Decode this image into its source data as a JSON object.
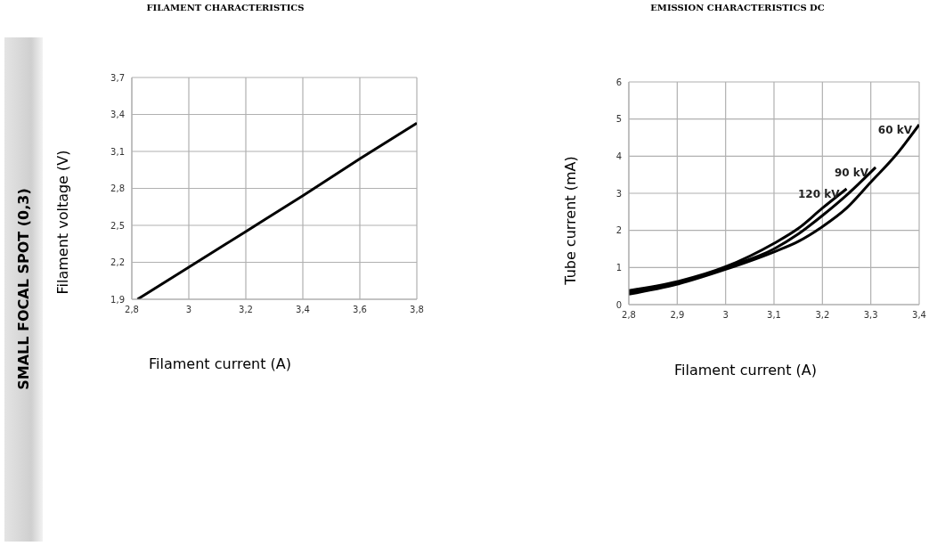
{
  "chart_data": [
    {
      "type": "line",
      "title": "FILAMENT CHARACTERISTICS",
      "xlabel": "Filament current (A)",
      "ylabel": "Filament voltage (V)",
      "annotations": [
        "SMALL FOCAL SPOT (0,3)"
      ],
      "series": [
        {
          "color": "#000000",
          "x": [
            2.82,
            3.0,
            3.2,
            3.4,
            3.6,
            3.8
          ],
          "values": [
            1.9,
            2.16,
            2.45,
            2.74,
            3.04,
            3.33
          ]
        }
      ],
      "xlim": [
        2.8,
        3.8
      ],
      "xticks": [
        {
          "value": 2.8,
          "label": "2,8"
        },
        {
          "value": 3,
          "label": "3"
        },
        {
          "value": 3.2,
          "label": "3,2"
        },
        {
          "value": 3.4,
          "label": "3,4"
        },
        {
          "value": 3.6,
          "label": "3,6"
        },
        {
          "value": 3.8,
          "label": "3,8"
        }
      ],
      "ylim": [
        1.9,
        3.7
      ],
      "yticks": [
        {
          "value": 1.9,
          "label": "1,9"
        },
        {
          "value": 2.2,
          "label": "2,2"
        },
        {
          "value": 2.5,
          "label": "2,5"
        },
        {
          "value": 2.8,
          "label": "2,8"
        },
        {
          "value": 3.1,
          "label": "3,1"
        },
        {
          "value": 3.4,
          "label": "3,4"
        },
        {
          "value": 3.7,
          "label": "3,7"
        }
      ],
      "grid": true,
      "legend": false,
      "marker": "none",
      "line_style": "solid"
    },
    {
      "type": "line",
      "title": "EMISSION CHARACTERISTICS DC",
      "xlabel": "Filament current (A)",
      "ylabel": "Tube current (mA)",
      "series": [
        {
          "name": "120 kV",
          "color": "#000000",
          "x": [
            2.8,
            2.9,
            3.0,
            3.1,
            3.15,
            3.2,
            3.25
          ],
          "values": [
            0.38,
            0.62,
            1.02,
            1.65,
            2.05,
            2.6,
            3.12
          ]
        },
        {
          "name": "90 kV",
          "color": "#000000",
          "x": [
            2.8,
            2.9,
            3.0,
            3.1,
            3.15,
            3.2,
            3.25,
            3.31
          ],
          "values": [
            0.33,
            0.58,
            1.0,
            1.5,
            1.9,
            2.4,
            2.95,
            3.7
          ]
        },
        {
          "name": "60 kV",
          "color": "#000000",
          "x": [
            2.8,
            2.9,
            3.0,
            3.1,
            3.15,
            3.2,
            3.25,
            3.3,
            3.35,
            3.4
          ],
          "values": [
            0.28,
            0.55,
            0.95,
            1.42,
            1.7,
            2.1,
            2.6,
            3.3,
            4.0,
            4.85
          ]
        }
      ],
      "xlim": [
        2.8,
        3.4
      ],
      "xticks": [
        {
          "value": 2.8,
          "label": "2,8"
        },
        {
          "value": 2.9,
          "label": "2,9"
        },
        {
          "value": 3,
          "label": "3"
        },
        {
          "value": 3.1,
          "label": "3,1"
        },
        {
          "value": 3.2,
          "label": "3,2"
        },
        {
          "value": 3.3,
          "label": "3,3"
        },
        {
          "value": 3.4,
          "label": "3,4"
        }
      ],
      "ylim": [
        0,
        6
      ],
      "yticks": [
        0,
        1,
        2,
        3,
        4,
        5,
        6
      ],
      "grid": true,
      "legend": false,
      "marker": "none",
      "line_style": "solid"
    }
  ]
}
